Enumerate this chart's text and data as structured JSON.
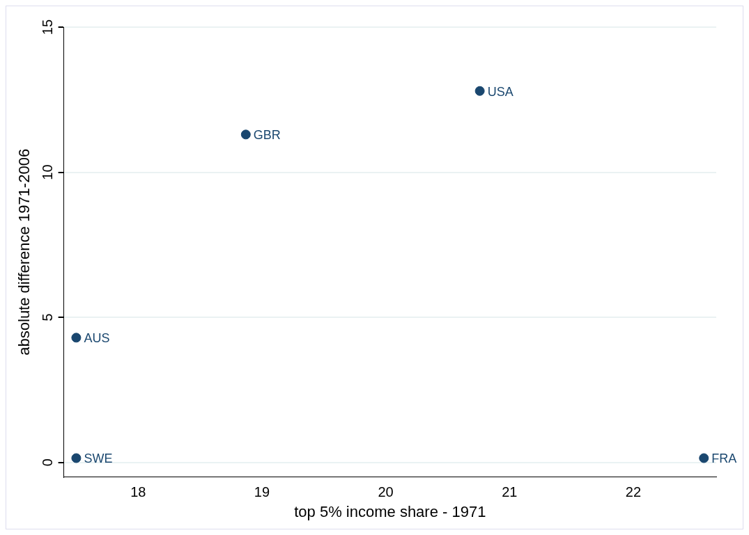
{
  "chart_data": {
    "type": "scatter",
    "xlabel": "top 5% income share - 1971",
    "ylabel": "absolute difference 1971-2006",
    "x": [
      17.5,
      17.5,
      18.87,
      20.76,
      22.57
    ],
    "series": [
      {
        "color": "#1a476f",
        "values": [
          0.15,
          4.3,
          11.3,
          12.8,
          0.15
        ]
      }
    ],
    "annotations": [
      {
        "text": "SWE",
        "x": 17.5,
        "y": 0.15
      },
      {
        "text": "AUS",
        "x": 17.5,
        "y": 4.3
      },
      {
        "text": "GBR",
        "x": 18.87,
        "y": 11.3
      },
      {
        "text": "USA",
        "x": 20.76,
        "y": 12.8
      },
      {
        "text": "FRA",
        "x": 22.57,
        "y": 0.15
      }
    ],
    "xlim": [
      17.4,
      22.67
    ],
    "xticks": [
      18,
      19,
      20,
      21,
      22
    ],
    "ylim": [
      -0.5,
      15
    ],
    "yticks": [
      0,
      5,
      10,
      15
    ],
    "grid": "y",
    "legend": false,
    "marker": "circle"
  }
}
